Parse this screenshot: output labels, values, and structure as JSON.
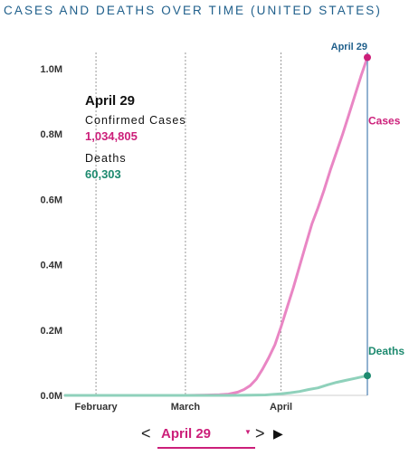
{
  "header": {
    "title": "CASES AND DEATHS OVER TIME (UNITED STATES)"
  },
  "colors": {
    "title": "#1f5f8b",
    "cases": "#e986c4",
    "cases_accent": "#cc1f7a",
    "deaths": "#8fd1bb",
    "deaths_accent": "#1d8a6f",
    "marker_line": "#6f98c2"
  },
  "info_panel": {
    "date": "April 29",
    "cases_label": "Confirmed Cases",
    "cases_value": "1,034,805",
    "deaths_label": "Deaths",
    "deaths_value": "60,303"
  },
  "controls": {
    "prev_label": "<",
    "selected_date": "April 29",
    "dropdown_icon": "caret-down-icon",
    "next_label": ">",
    "play_icon": "play-icon"
  },
  "chart_data": {
    "type": "line",
    "x_type": "date",
    "xlim": [
      "2020-01-22",
      "2020-04-29"
    ],
    "ylim": [
      0,
      1050000
    ],
    "yticks": [
      {
        "value": 0,
        "label": "0.0M"
      },
      {
        "value": 200000,
        "label": "0.2M"
      },
      {
        "value": 400000,
        "label": "0.4M"
      },
      {
        "value": 600000,
        "label": "0.6M"
      },
      {
        "value": 800000,
        "label": "0.8M"
      },
      {
        "value": 1000000,
        "label": "1.0M"
      }
    ],
    "xticks": [
      {
        "value": "2020-02-01",
        "label": "February"
      },
      {
        "value": "2020-03-01",
        "label": "March"
      },
      {
        "value": "2020-04-01",
        "label": "April"
      }
    ],
    "grid": "vertical-dotted",
    "marker": {
      "x": "2020-04-29",
      "label": "April 29"
    },
    "series": [
      {
        "name": "Cases",
        "color": "#e986c4",
        "x": [
          "2020-01-22",
          "2020-02-15",
          "2020-03-01",
          "2020-03-08",
          "2020-03-12",
          "2020-03-15",
          "2020-03-18",
          "2020-03-20",
          "2020-03-22",
          "2020-03-24",
          "2020-03-26",
          "2020-03-28",
          "2020-03-30",
          "2020-04-01",
          "2020-04-03",
          "2020-04-05",
          "2020-04-07",
          "2020-04-09",
          "2020-04-11",
          "2020-04-13",
          "2020-04-15",
          "2020-04-17",
          "2020-04-19",
          "2020-04-21",
          "2020-04-23",
          "2020-04-25",
          "2020-04-27",
          "2020-04-29"
        ],
        "y": [
          0,
          0,
          0,
          1000,
          2000,
          4000,
          10000,
          18000,
          30000,
          50000,
          80000,
          115000,
          155000,
          210000,
          270000,
          330000,
          395000,
          460000,
          525000,
          575000,
          630000,
          690000,
          745000,
          800000,
          860000,
          920000,
          980000,
          1034805
        ]
      },
      {
        "name": "Deaths",
        "color": "#8fd1bb",
        "x": [
          "2020-01-22",
          "2020-03-01",
          "2020-03-15",
          "2020-03-22",
          "2020-03-27",
          "2020-04-01",
          "2020-04-04",
          "2020-04-07",
          "2020-04-10",
          "2020-04-13",
          "2020-04-16",
          "2020-04-19",
          "2020-04-22",
          "2020-04-25",
          "2020-04-29"
        ],
        "y": [
          0,
          0,
          100,
          500,
          1500,
          5000,
          8000,
          12000,
          18000,
          23000,
          32000,
          40000,
          46000,
          52000,
          60303
        ]
      }
    ],
    "end_labels": [
      {
        "series": "Cases",
        "label": "Cases"
      },
      {
        "series": "Deaths",
        "label": "Deaths"
      }
    ]
  }
}
